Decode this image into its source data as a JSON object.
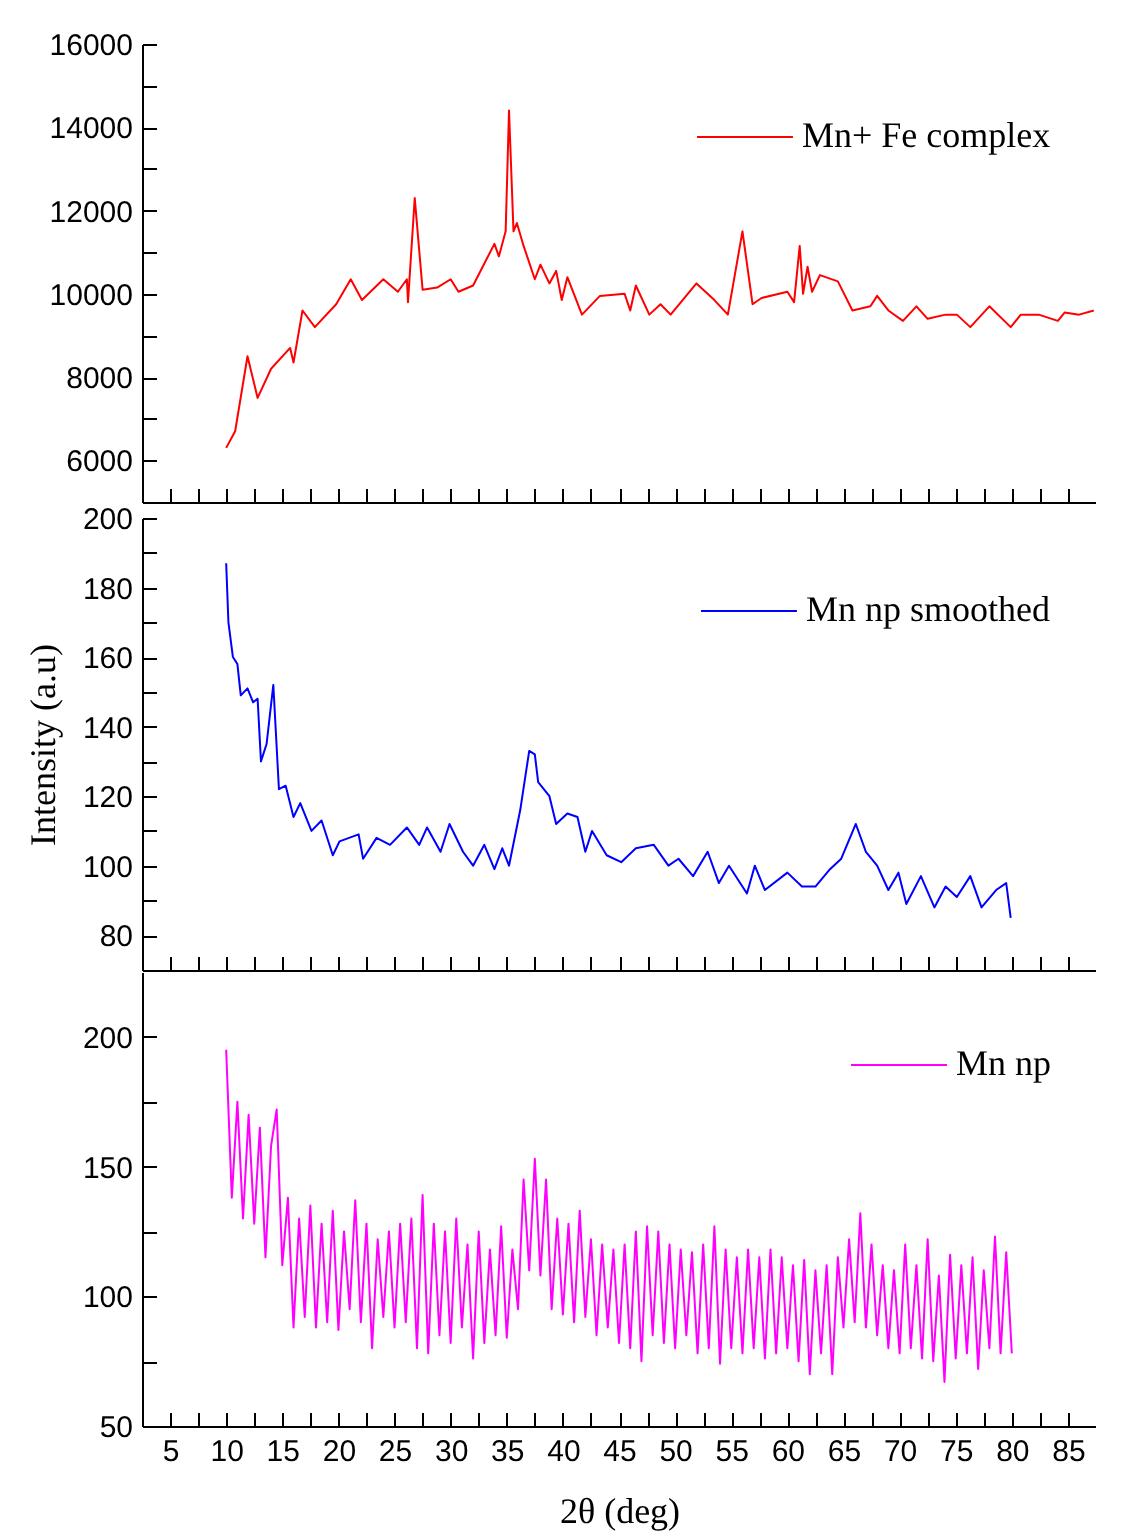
{
  "chart_data": [
    {
      "type": "line",
      "legend": "top right",
      "tick_labels": "y",
      "xlim": [
        2.5,
        87.5
      ],
      "xticks": [
        5,
        {
          "value": 7.5,
          "label": null
        },
        10,
        {
          "value": 12.5,
          "label": null
        },
        15,
        {
          "value": 17.5,
          "label": null
        },
        20,
        {
          "value": 22.5,
          "label": null
        },
        25,
        {
          "value": 27.5,
          "label": null
        },
        30,
        {
          "value": 32.5,
          "label": null
        },
        35,
        {
          "value": 37.5,
          "label": null
        },
        40,
        {
          "value": 42.5,
          "label": null
        },
        45,
        {
          "value": 47.5,
          "label": null
        },
        50,
        {
          "value": 52.5,
          "label": null
        },
        55,
        {
          "value": 57.5,
          "label": null
        },
        60,
        {
          "value": 62.5,
          "label": null
        },
        65,
        {
          "value": 67.5,
          "label": null
        },
        70,
        {
          "value": 72.5,
          "label": null
        },
        75,
        {
          "value": 77.5,
          "label": null
        },
        80,
        {
          "value": 82.5,
          "label": null
        },
        85
      ],
      "ylim": [
        5000,
        16000
      ],
      "yticks": [
        6000,
        {
          "value": 7000,
          "label": null
        },
        8000,
        {
          "value": 9000,
          "label": null
        },
        10000,
        {
          "value": 11000,
          "label": null
        },
        12000,
        {
          "value": 13000,
          "label": null
        },
        14000,
        {
          "value": 15000,
          "label": null
        },
        16000
      ],
      "series": [
        {
          "name": "Mn+ Fe complex",
          "color": "#ff0000",
          "x": [
            10,
            10.8,
            11.9,
            12.8,
            14.0,
            15.7,
            16.0,
            16.8,
            17.9,
            19.8,
            21.1,
            22.1,
            24.0,
            25.3,
            26.1,
            26.2,
            26.8,
            27.5,
            28.8,
            30.0,
            30.7,
            32.0,
            33.9,
            34.3,
            34.9,
            35.2,
            35.6,
            35.9,
            36.5,
            37.5,
            38.0,
            38.8,
            39.4,
            39.9,
            40.4,
            41.7,
            43.3,
            45.5,
            46.0,
            46.5,
            47.7,
            48.7,
            49.6,
            51.9,
            53.5,
            54.7,
            56.0,
            56.9,
            57.7,
            60.0,
            60.6,
            61.1,
            61.4,
            61.8,
            62.2,
            62.9,
            64.5,
            65.8,
            67.4,
            68.0,
            69.0,
            70.3,
            71.5,
            72.5,
            74.1,
            75.1,
            76.3,
            78.0,
            79.9,
            80.8,
            82.4,
            84.1,
            84.7,
            86.0,
            87.3
          ],
          "values": [
            6300,
            6700,
            8500,
            7500,
            8200,
            8700,
            8350,
            9600,
            9200,
            9750,
            10350,
            9850,
            10350,
            10050,
            10350,
            9800,
            12300,
            10100,
            10150,
            10350,
            10050,
            10200,
            11200,
            10900,
            11500,
            14400,
            11500,
            11700,
            11150,
            10350,
            10700,
            10250,
            10550,
            9850,
            10400,
            9500,
            9950,
            10000,
            9600,
            10200,
            9500,
            9750,
            9500,
            10250,
            9850,
            9500,
            11500,
            9750,
            9900,
            10050,
            9800,
            11150,
            10000,
            10650,
            10050,
            10450,
            10300,
            9600,
            9700,
            9950,
            9600,
            9350,
            9700,
            9400,
            9500,
            9500,
            9200,
            9700,
            9200,
            9500,
            9500,
            9350,
            9550,
            9500,
            9600
          ]
        }
      ]
    },
    {
      "type": "line",
      "legend": "top right",
      "tick_labels": "y",
      "ylabel": "Intensity (a.u)",
      "xlim": [
        2.5,
        87.5
      ],
      "xticks": [
        5,
        {
          "value": 7.5,
          "label": null
        },
        10,
        {
          "value": 12.5,
          "label": null
        },
        15,
        {
          "value": 17.5,
          "label": null
        },
        20,
        {
          "value": 22.5,
          "label": null
        },
        25,
        {
          "value": 27.5,
          "label": null
        },
        30,
        {
          "value": 32.5,
          "label": null
        },
        35,
        {
          "value": 37.5,
          "label": null
        },
        40,
        {
          "value": 42.5,
          "label": null
        },
        45,
        {
          "value": 47.5,
          "label": null
        },
        50,
        {
          "value": 52.5,
          "label": null
        },
        55,
        {
          "value": 57.5,
          "label": null
        },
        60,
        {
          "value": 62.5,
          "label": null
        },
        65,
        {
          "value": 67.5,
          "label": null
        },
        70,
        {
          "value": 72.5,
          "label": null
        },
        75,
        {
          "value": 77.5,
          "label": null
        },
        80,
        {
          "value": 82.5,
          "label": null
        },
        85
      ],
      "ylim": [
        70,
        200
      ],
      "yticks": [
        80,
        {
          "value": 90,
          "label": null
        },
        100,
        {
          "value": 110,
          "label": null
        },
        120,
        {
          "value": 130,
          "label": null
        },
        140,
        {
          "value": 150,
          "label": null
        },
        160,
        {
          "value": 170,
          "label": null
        },
        180,
        {
          "value": 190,
          "label": null
        },
        200
      ],
      "series": [
        {
          "name": "Mn np smoothed",
          "color": "#0000ff",
          "x": [
            10,
            10.2,
            10.6,
            11.0,
            11.3,
            11.9,
            12.4,
            12.8,
            13.1,
            13.6,
            14.2,
            14.7,
            15.3,
            16.0,
            16.6,
            17.6,
            18.5,
            19.5,
            20.1,
            21.8,
            22.2,
            23.4,
            24.6,
            26.1,
            27.2,
            27.9,
            29.1,
            29.9,
            31.1,
            32.0,
            33.0,
            33.9,
            34.6,
            35.2,
            36.2,
            37.0,
            37.5,
            37.8,
            38.8,
            39.4,
            40.4,
            41.3,
            42.0,
            42.6,
            43.9,
            45.2,
            46.5,
            48.1,
            49.4,
            50.3,
            51.6,
            52.9,
            53.9,
            54.8,
            56.4,
            57.1,
            58.0,
            60.0,
            61.3,
            62.5,
            63.8,
            64.8,
            66.1,
            67.0,
            68.0,
            69.0,
            69.9,
            70.6,
            71.9,
            73.1,
            74.1,
            75.1,
            76.3,
            77.3,
            78.6,
            79.5,
            79.9
          ],
          "values": [
            187,
            170,
            160,
            158,
            149,
            151,
            147,
            148,
            130,
            135,
            152,
            122,
            123,
            114,
            118,
            110,
            113,
            103,
            107,
            109,
            102,
            108,
            106,
            111,
            106,
            111,
            104,
            112,
            104,
            100,
            106,
            99,
            105,
            100,
            116,
            133,
            132,
            124,
            120,
            112,
            115,
            114,
            104,
            110,
            103,
            101,
            105,
            106,
            100,
            102,
            97,
            104,
            95,
            100,
            92,
            100,
            93,
            98,
            94,
            94,
            99,
            102,
            112,
            104,
            100,
            93,
            98,
            89,
            97,
            88,
            94,
            91,
            97,
            88,
            93,
            95,
            85
          ]
        }
      ]
    },
    {
      "type": "line",
      "legend": "top right",
      "xlabel": "2θ  (deg)",
      "xlim": [
        2.5,
        87.5
      ],
      "xticks": [
        5,
        {
          "value": 7.5,
          "label": null
        },
        10,
        {
          "value": 12.5,
          "label": null
        },
        15,
        {
          "value": 17.5,
          "label": null
        },
        20,
        {
          "value": 22.5,
          "label": null
        },
        25,
        {
          "value": 27.5,
          "label": null
        },
        30,
        {
          "value": 32.5,
          "label": null
        },
        35,
        {
          "value": 37.5,
          "label": null
        },
        40,
        {
          "value": 42.5,
          "label": null
        },
        45,
        {
          "value": 47.5,
          "label": null
        },
        50,
        {
          "value": 52.5,
          "label": null
        },
        55,
        {
          "value": 57.5,
          "label": null
        },
        60,
        {
          "value": 62.5,
          "label": null
        },
        65,
        {
          "value": 67.5,
          "label": null
        },
        70,
        {
          "value": 72.5,
          "label": null
        },
        75,
        {
          "value": 77.5,
          "label": null
        },
        80,
        {
          "value": 82.5,
          "label": null
        },
        85
      ],
      "ylim": [
        50,
        225
      ],
      "yticks": [
        50,
        {
          "value": 75,
          "label": null
        },
        100,
        {
          "value": 125,
          "label": null
        },
        150,
        {
          "value": 175,
          "label": null
        },
        200
      ],
      "series": [
        {
          "name": "Mn np",
          "color": "#ff00ff",
          "x": [
            10,
            10.5,
            11,
            11.5,
            12,
            12.5,
            13,
            13.5,
            14,
            14.5,
            15,
            15.5,
            16,
            16.5,
            17,
            17.5,
            18,
            18.5,
            19,
            19.5,
            20,
            20.5,
            21,
            21.5,
            22,
            22.5,
            23,
            23.5,
            24,
            24.5,
            25,
            25.5,
            26,
            26.5,
            27,
            27.5,
            28,
            28.5,
            29,
            29.5,
            30,
            30.5,
            31,
            31.5,
            32,
            32.5,
            33,
            33.5,
            34,
            34.5,
            35,
            35.5,
            36,
            36.5,
            37,
            37.5,
            38,
            38.5,
            39,
            39.5,
            40,
            40.5,
            41,
            41.5,
            42,
            42.5,
            43,
            43.5,
            44,
            44.5,
            45,
            45.5,
            46,
            46.5,
            47,
            47.5,
            48,
            48.5,
            49,
            49.5,
            50,
            50.5,
            51,
            51.5,
            52,
            52.5,
            53,
            53.5,
            54,
            54.5,
            55,
            55.5,
            56,
            56.5,
            57,
            57.5,
            58,
            58.5,
            59,
            59.5,
            60,
            60.5,
            61,
            61.5,
            62,
            62.5,
            63,
            63.5,
            64,
            64.5,
            65,
            65.5,
            66,
            66.5,
            67,
            67.5,
            68,
            68.5,
            69,
            69.5,
            70,
            70.5,
            71,
            71.5,
            72,
            72.5,
            73,
            73.5,
            74,
            74.5,
            75,
            75.5,
            76,
            76.5,
            77,
            77.5,
            78,
            78.5,
            79,
            79.5,
            80
          ],
          "values": [
            195,
            138,
            175,
            130,
            170,
            128,
            165,
            115,
            158,
            172,
            112,
            138,
            88,
            130,
            92,
            135,
            88,
            128,
            90,
            133,
            87,
            125,
            95,
            137,
            90,
            128,
            80,
            122,
            92,
            125,
            88,
            128,
            90,
            130,
            80,
            139,
            78,
            128,
            85,
            125,
            82,
            130,
            88,
            120,
            76,
            125,
            82,
            118,
            85,
            127,
            84,
            118,
            95,
            145,
            110,
            153,
            108,
            145,
            95,
            130,
            93,
            128,
            90,
            133,
            92,
            122,
            85,
            120,
            88,
            118,
            82,
            120,
            80,
            125,
            75,
            127,
            85,
            125,
            82,
            120,
            80,
            118,
            85,
            117,
            78,
            120,
            80,
            127,
            74,
            118,
            80,
            115,
            78,
            118,
            80,
            115,
            76,
            118,
            78,
            115,
            80,
            112,
            75,
            114,
            70,
            110,
            78,
            112,
            70,
            115,
            88,
            122,
            90,
            132,
            88,
            120,
            85,
            112,
            80,
            110,
            78,
            120,
            80,
            112,
            76,
            122,
            75,
            108,
            67,
            116,
            76,
            112,
            78,
            115,
            72,
            110,
            80,
            123,
            78,
            117,
            78
          ]
        }
      ]
    }
  ]
}
